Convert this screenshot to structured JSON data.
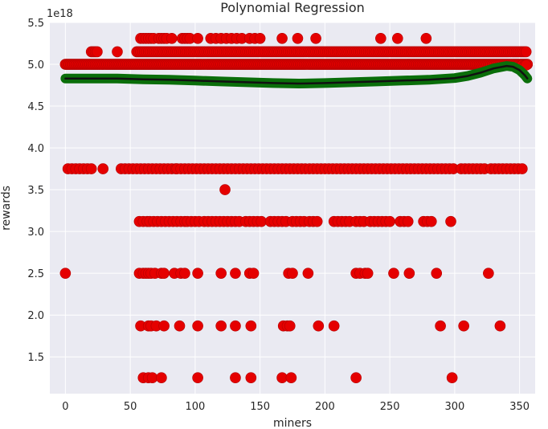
{
  "chart_data": {
    "type": "scatter",
    "title": "Polynomial Regression",
    "xlabel": "miners",
    "ylabel": "rewards",
    "offset_label": "1e18",
    "xlim": [
      -12,
      362
    ],
    "ylim": [
      1.06,
      5.5
    ],
    "grid": true,
    "xticks": [
      0,
      50,
      100,
      150,
      200,
      250,
      300,
      350
    ],
    "yticks": [
      1.5,
      2.0,
      2.5,
      3.0,
      3.5,
      4.0,
      4.5,
      5.0,
      5.5
    ],
    "colors": {
      "background": "#EAEAF2",
      "grid": "#FFFFFF",
      "scatter": "#E50000",
      "scatter_edge": "#B40000",
      "fit_fill": "#0A6E0A",
      "fit_line": "#111111"
    },
    "series": [
      {
        "kind": "scatter",
        "bands": [
          {
            "y": 5.0,
            "ranges": [
              [
                0,
                356,
                1.0
              ]
            ]
          },
          {
            "y": 5.15,
            "ranges": [
              [
                20,
                25,
                1.5
              ],
              [
                40,
                40,
                1
              ],
              [
                55,
                356,
                1.5
              ]
            ]
          },
          {
            "y": 5.31,
            "points": [
              58,
              60,
              62,
              64,
              66,
              68,
              72,
              74,
              76,
              78,
              82,
              90,
              92,
              94,
              96,
              102,
              112,
              116,
              120,
              124,
              128,
              132,
              136,
              142,
              146,
              150,
              167,
              179,
              193,
              243,
              256,
              278
            ]
          },
          {
            "y": 4.99,
            "points": [
              352,
              354,
              355
            ]
          },
          {
            "y": 3.75,
            "ranges": [
              [
                2,
                22,
                3
              ],
              [
                29,
                29,
                1
              ],
              [
                43,
                86,
                3
              ],
              [
                86,
                300,
                3
              ],
              [
                305,
                325,
                3
              ],
              [
                328,
                352,
                3
              ]
            ]
          },
          {
            "y": 3.5,
            "points": [
              123
            ]
          },
          {
            "y": 3.12,
            "ranges": [
              [
                57,
                64,
                3
              ],
              [
                65,
                92,
                3
              ],
              [
                94,
                104,
                3
              ],
              [
                107,
                122,
                3
              ],
              [
                125,
                136,
                3
              ],
              [
                139,
                152,
                3
              ],
              [
                158,
                171,
                3
              ],
              [
                175,
                184,
                3
              ],
              [
                188,
                196,
                3
              ],
              [
                207,
                220,
                3
              ],
              [
                224,
                231,
                3
              ],
              [
                235,
                250,
                3
              ],
              [
                258,
                265,
                3
              ],
              [
                276,
                283,
                3
              ],
              [
                297,
                297,
                1
              ]
            ]
          },
          {
            "y": 2.5,
            "points": [
              0,
              57,
              60,
              62,
              64,
              66,
              69,
              74,
              76,
              84,
              89,
              92,
              102,
              120,
              131,
              142,
              145,
              172,
              175,
              187,
              224,
              227,
              231,
              233,
              253,
              265,
              286,
              326
            ]
          },
          {
            "y": 1.87,
            "points": [
              58,
              64,
              66,
              70,
              76,
              88,
              102,
              120,
              131,
              143,
              168,
              171,
              173,
              195,
              207,
              289,
              307,
              335
            ]
          },
          {
            "y": 1.25,
            "points": [
              60,
              64,
              67,
              74,
              102,
              131,
              143,
              167,
              174,
              224,
              298
            ]
          }
        ]
      },
      {
        "kind": "line",
        "name": "fit",
        "x": [
          0,
          20,
          40,
          60,
          80,
          100,
          120,
          140,
          160,
          180,
          200,
          220,
          240,
          260,
          280,
          300,
          310,
          320,
          330,
          340,
          345,
          350,
          354,
          356
        ],
        "y": [
          4.83,
          4.83,
          4.83,
          4.82,
          4.815,
          4.805,
          4.795,
          4.785,
          4.775,
          4.77,
          4.775,
          4.785,
          4.795,
          4.805,
          4.815,
          4.835,
          4.86,
          4.9,
          4.95,
          4.98,
          4.97,
          4.93,
          4.87,
          4.83
        ]
      }
    ]
  }
}
